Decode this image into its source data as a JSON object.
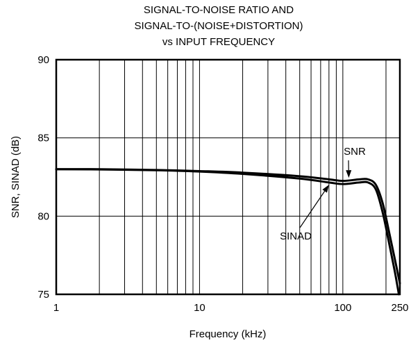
{
  "chart_data": {
    "type": "line",
    "title_lines": [
      "SIGNAL-TO-NOISE RATIO AND",
      "SIGNAL-TO-(NOISE+DISTORTION)",
      "vs INPUT FREQUENCY"
    ],
    "xlabel": "Frequency (kHz)",
    "ylabel": "SNR, SINAD (dB)",
    "x_scale": "log",
    "xlim": [
      1,
      250
    ],
    "ylim": [
      75,
      90
    ],
    "x_ticks": [
      {
        "value": 1,
        "label": "1"
      },
      {
        "value": 10,
        "label": "10"
      },
      {
        "value": 100,
        "label": "100"
      },
      {
        "value": 250,
        "label": "250"
      }
    ],
    "y_ticks": [
      {
        "value": 75,
        "label": "75"
      },
      {
        "value": 80,
        "label": "80"
      },
      {
        "value": 85,
        "label": "85"
      },
      {
        "value": 90,
        "label": "90"
      }
    ],
    "grid": true,
    "series": [
      {
        "name": "SNR",
        "x": [
          1,
          2,
          5,
          10,
          20,
          50,
          80,
          100,
          130,
          150,
          170,
          190,
          210,
          230,
          250
        ],
        "y": [
          83.0,
          83.0,
          82.95,
          82.88,
          82.78,
          82.55,
          82.35,
          82.25,
          82.35,
          82.35,
          82.0,
          80.8,
          79.0,
          77.3,
          75.7
        ]
      },
      {
        "name": "SINAD",
        "x": [
          1,
          2,
          5,
          10,
          20,
          50,
          80,
          100,
          130,
          150,
          170,
          190,
          210,
          230,
          246
        ],
        "y": [
          83.0,
          82.98,
          82.93,
          82.85,
          82.7,
          82.4,
          82.15,
          82.05,
          82.15,
          82.15,
          81.7,
          80.2,
          78.3,
          76.5,
          75.0
        ]
      }
    ],
    "annotations": [
      {
        "text": "SNR",
        "series": "SNR"
      },
      {
        "text": "SINAD",
        "series": "SINAD"
      }
    ]
  }
}
